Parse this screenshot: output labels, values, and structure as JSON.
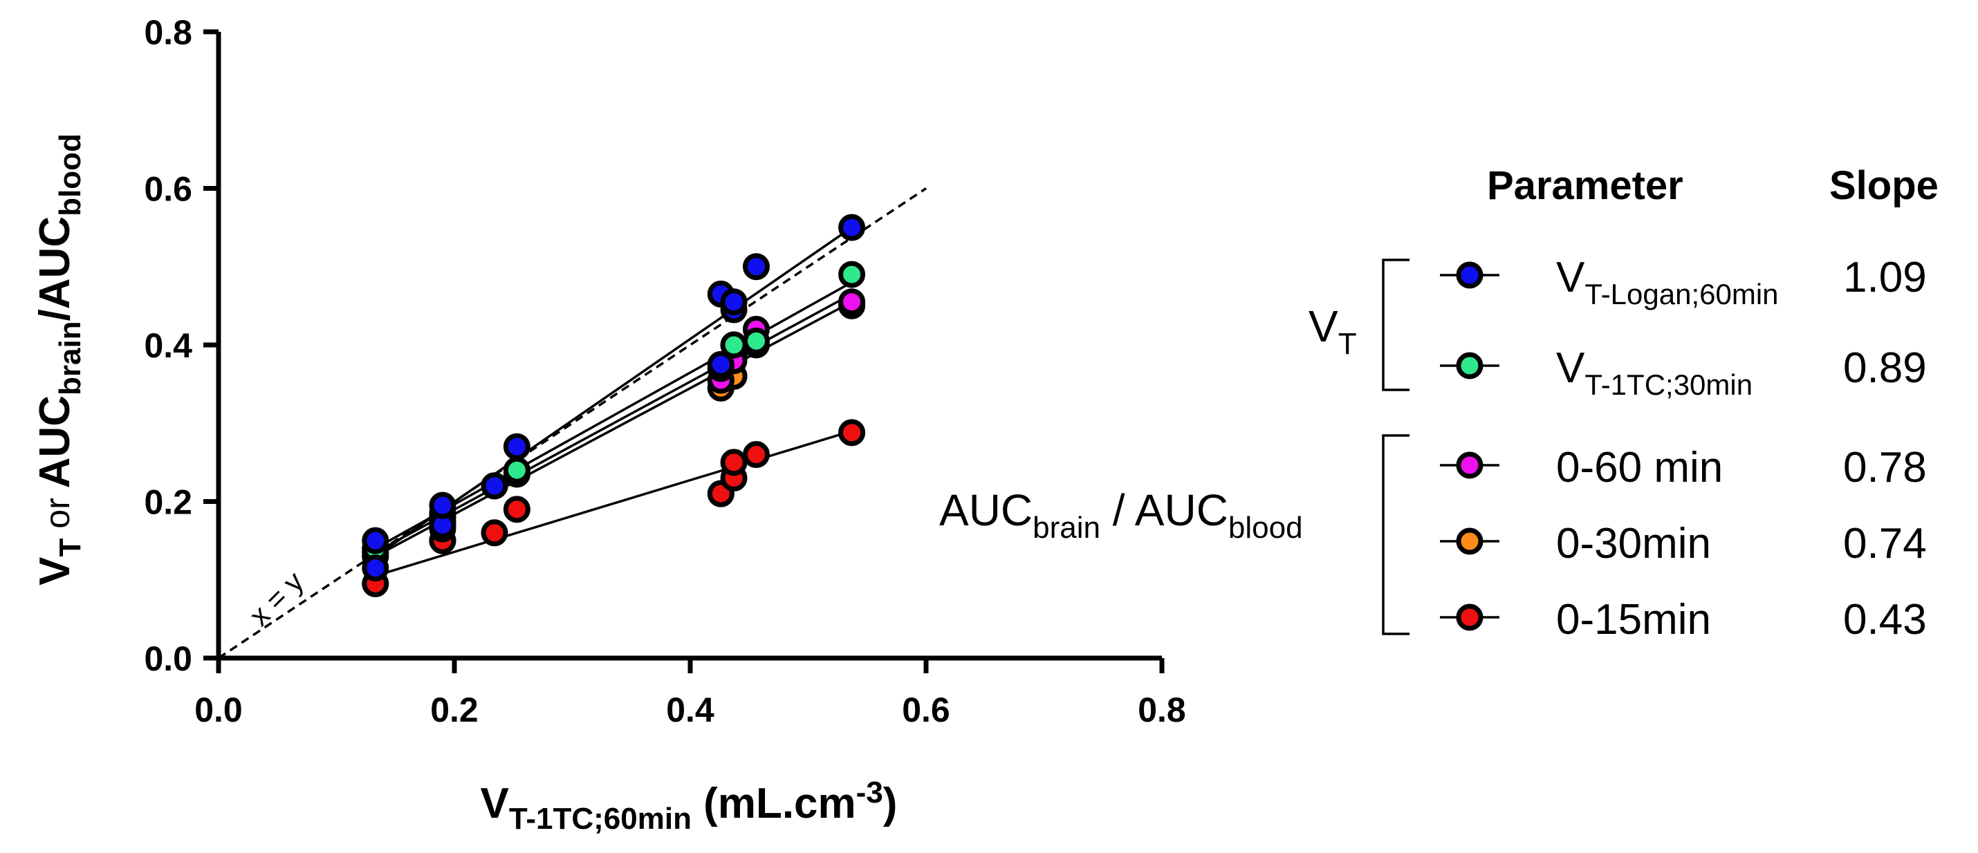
{
  "chart_data": {
    "type": "scatter",
    "xlabel": {
      "main": "V",
      "sub": "T-1TC;60min",
      "unit_prefix": " (mL.cm",
      "unit_sup": "-3",
      "unit_suffix": ")"
    },
    "ylabel": {
      "v": "V",
      "v_sub": "T",
      "or": " or ",
      "auc1": "AUC",
      "auc1_sub": "brain",
      "slash": "/AUC",
      "auc2_sub": "blood"
    },
    "xlim": [
      0.0,
      0.8
    ],
    "ylim": [
      0.0,
      0.8
    ],
    "xticks": [
      "0.0",
      "0.2",
      "0.4",
      "0.6",
      "0.8"
    ],
    "yticks": [
      "0.0",
      "0.2",
      "0.4",
      "0.6",
      "0.8"
    ],
    "identity_line": {
      "label": "x = y",
      "x": [
        0.0,
        0.6
      ],
      "y": [
        0.0,
        0.6
      ]
    },
    "x": [
      0.133,
      0.133,
      0.19,
      0.19,
      0.234,
      0.253,
      0.426,
      0.426,
      0.437,
      0.437,
      0.456,
      0.537
    ],
    "series": [
      {
        "name": "V_T-Logan;60min",
        "color": "#1010ee",
        "slope": "1.09",
        "y": [
          0.115,
          0.15,
          0.17,
          0.195,
          0.22,
          0.27,
          0.465,
          0.375,
          0.445,
          0.455,
          0.5,
          0.55
        ],
        "fit": [
          [
            0.133,
            0.13
          ],
          [
            0.537,
            0.55
          ]
        ]
      },
      {
        "name": "V_T-1TC;30min",
        "color": "#2ee88c",
        "slope": "0.89",
        "y": [
          0.14,
          0.14,
          0.18,
          0.185,
          0.22,
          0.24,
          0.37,
          0.37,
          0.4,
          0.4,
          0.405,
          0.49
        ],
        "fit": [
          [
            0.133,
            0.14
          ],
          [
            0.537,
            0.48
          ]
        ]
      },
      {
        "name": "0-60 min",
        "color": "#ee10ee",
        "slope": "0.78",
        "y": [
          0.135,
          0.135,
          0.17,
          0.18,
          0.22,
          0.235,
          0.355,
          0.355,
          0.385,
          0.38,
          0.42,
          0.455
        ],
        "fit": [
          [
            0.133,
            0.135
          ],
          [
            0.537,
            0.465
          ]
        ]
      },
      {
        "name": "0-30min",
        "color": "#ff8c1a",
        "slope": "0.74",
        "y": [
          0.13,
          0.13,
          0.165,
          0.175,
          0.22,
          0.235,
          0.345,
          0.345,
          0.36,
          0.36,
          0.4,
          0.45
        ],
        "fit": [
          [
            0.133,
            0.13
          ],
          [
            0.537,
            0.455
          ]
        ]
      },
      {
        "name": "0-15min",
        "color": "#ee1010",
        "slope": "0.43",
        "y": [
          0.095,
          0.095,
          0.15,
          0.15,
          0.16,
          0.19,
          0.21,
          0.21,
          0.23,
          0.25,
          0.26,
          0.288
        ],
        "fit": [
          [
            0.133,
            0.105
          ],
          [
            0.537,
            0.29
          ]
        ]
      }
    ]
  },
  "legend": {
    "header_parameter": "Parameter",
    "header_slope": "Slope",
    "group_vt": {
      "main": "V",
      "sub": "T"
    },
    "group_auc": {
      "a": "AUC",
      "a_sub": "brain",
      "mid": " / AUC",
      "b_sub": "blood"
    },
    "entries": [
      {
        "label_main": "V",
        "label_sub": "T-Logan;60min",
        "slope": "1.09",
        "color": "#1010ee"
      },
      {
        "label_main": "V",
        "label_sub": "T-1TC;30min",
        "slope": "0.89",
        "color": "#2ee88c"
      },
      {
        "label_main": "0-60 min",
        "label_sub": "",
        "slope": "0.78",
        "color": "#ee10ee"
      },
      {
        "label_main": "0-30min",
        "label_sub": "",
        "slope": "0.74",
        "color": "#ff8c1a"
      },
      {
        "label_main": "0-15min",
        "label_sub": "",
        "slope": "0.43",
        "color": "#ee1010"
      }
    ]
  }
}
